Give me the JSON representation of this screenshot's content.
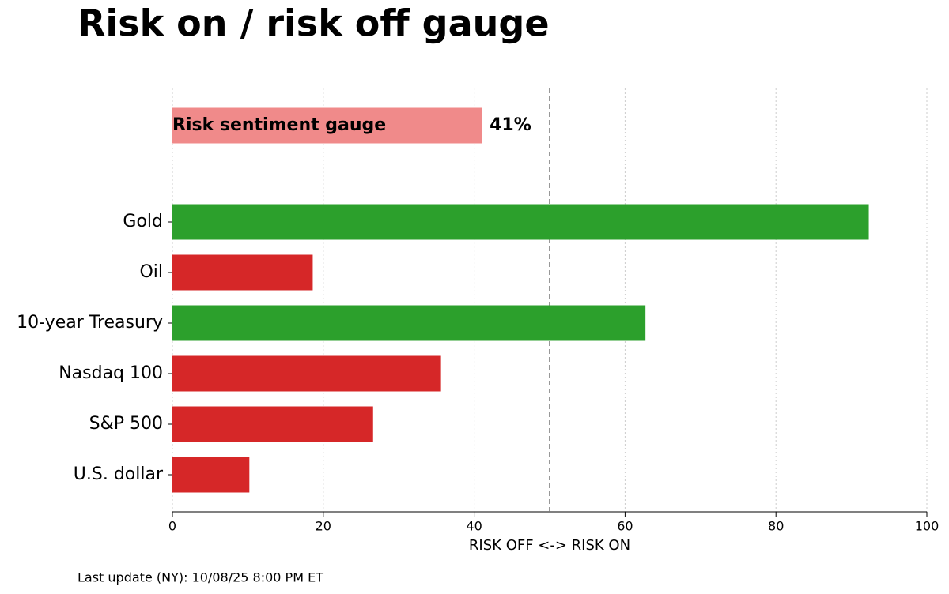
{
  "chart_data": {
    "type": "bar",
    "orientation": "horizontal",
    "title": "Risk on / risk off gauge",
    "xlabel": "RISK OFF <-> RISK ON",
    "footnote": "Last update (NY): 10/08/25 8:00 PM ET",
    "gauge": {
      "label": "Risk sentiment gauge",
      "value": 41,
      "value_label": "41%",
      "color": "#f08a8a"
    },
    "categories": [
      "Gold",
      "Oil",
      "10-year Treasury",
      "Nasdaq 100",
      "S&P 500",
      "U.S. dollar"
    ],
    "values": [
      92.3,
      18.6,
      62.7,
      35.6,
      26.6,
      10.2
    ],
    "colors": [
      "#2ca02c",
      "#d62728",
      "#2ca02c",
      "#d62728",
      "#d62728",
      "#d62728"
    ],
    "threshold": 50,
    "xlim": [
      0,
      100
    ],
    "xticks": [
      0,
      20,
      40,
      60,
      80,
      100
    ],
    "grid": true
  }
}
